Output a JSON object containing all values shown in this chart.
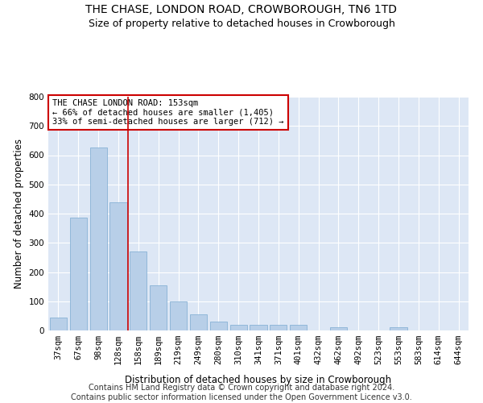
{
  "title": "THE CHASE, LONDON ROAD, CROWBOROUGH, TN6 1TD",
  "subtitle": "Size of property relative to detached houses in Crowborough",
  "xlabel": "Distribution of detached houses by size in Crowborough",
  "ylabel": "Number of detached properties",
  "categories": [
    "37sqm",
    "67sqm",
    "98sqm",
    "128sqm",
    "158sqm",
    "189sqm",
    "219sqm",
    "249sqm",
    "280sqm",
    "310sqm",
    "341sqm",
    "371sqm",
    "401sqm",
    "432sqm",
    "462sqm",
    "492sqm",
    "523sqm",
    "553sqm",
    "583sqm",
    "614sqm",
    "644sqm"
  ],
  "values": [
    45,
    385,
    625,
    440,
    270,
    155,
    100,
    55,
    30,
    20,
    20,
    20,
    20,
    0,
    10,
    0,
    0,
    10,
    0,
    0,
    0
  ],
  "bar_color": "#b8cfe8",
  "bar_edge_color": "#7aaad0",
  "background_color": "#dde7f5",
  "vline_x_index": 3.5,
  "vline_color": "#cc0000",
  "annotation_text": "THE CHASE LONDON ROAD: 153sqm\n← 66% of detached houses are smaller (1,405)\n33% of semi-detached houses are larger (712) →",
  "annotation_box_color": "#cc0000",
  "ylim": [
    0,
    800
  ],
  "yticks": [
    0,
    100,
    200,
    300,
    400,
    500,
    600,
    700,
    800
  ],
  "footer_line1": "Contains HM Land Registry data © Crown copyright and database right 2024.",
  "footer_line2": "Contains public sector information licensed under the Open Government Licence v3.0.",
  "title_fontsize": 10,
  "subtitle_fontsize": 9,
  "axis_label_fontsize": 8.5,
  "tick_fontsize": 7.5,
  "footer_fontsize": 7,
  "ann_fontsize": 7.5
}
